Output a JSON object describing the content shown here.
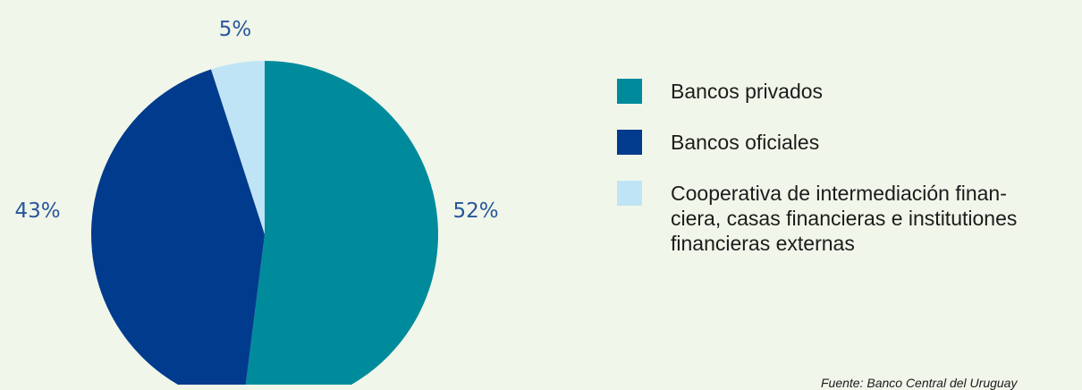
{
  "chart_data": {
    "type": "pie",
    "slices": [
      {
        "name": "Bancos privados",
        "value": 52,
        "label": "52%",
        "color": "#008b9c"
      },
      {
        "name": "Bancos oficiales",
        "value": 43,
        "label": "43%",
        "color": "#003b8d"
      },
      {
        "name": "Cooperativa de intermediación financiera, casas financieras e institutiones financieras externas",
        "value": 5,
        "label": "5%",
        "color": "#bfe4f5"
      }
    ],
    "legend": {
      "placement": "right",
      "items": [
        {
          "label": "Bancos privados",
          "color": "#008b9c"
        },
        {
          "label": "Bancos oficiales",
          "color": "#003b8d"
        },
        {
          "label": "Cooperativa de intermediación finan-ciera, casas financieras e institutiones financieras externas",
          "color": "#bfe4f5"
        }
      ]
    },
    "source": "Fuente: Banco Central del Uruguay"
  },
  "colors": {
    "background": "#f1f6ea",
    "label_text": "#27569c"
  }
}
